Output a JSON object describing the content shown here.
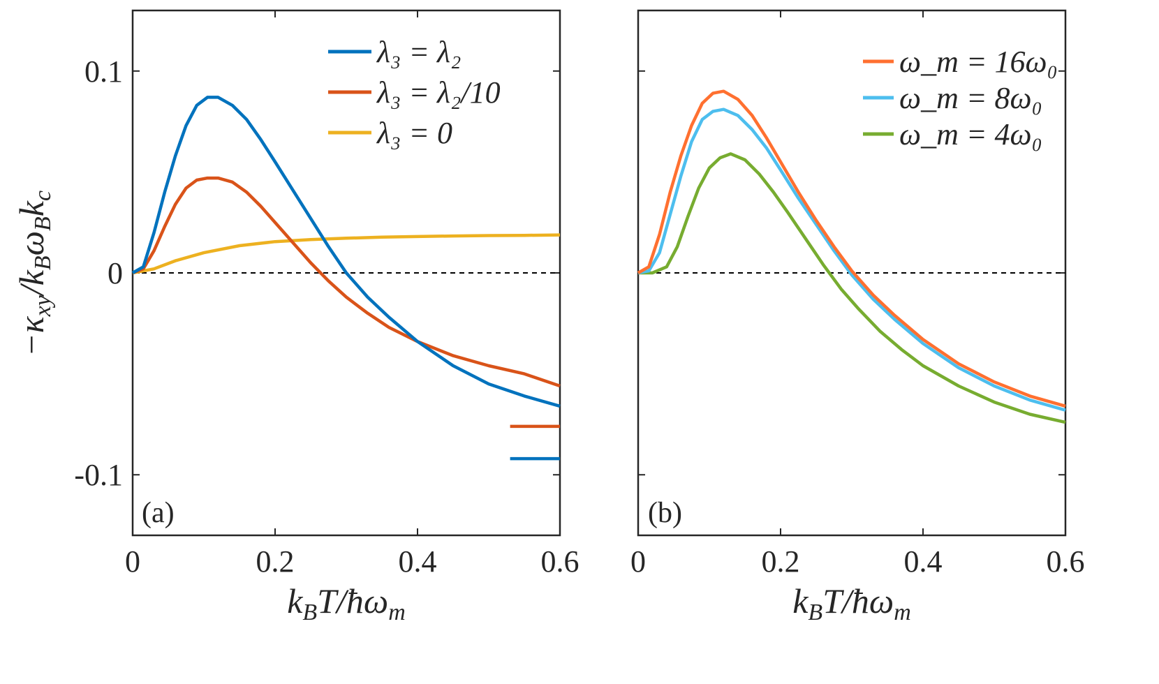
{
  "chart_data": [
    {
      "panel": "a",
      "type": "line",
      "tag": "(a)",
      "xlabel": "k_BT/ħω_m",
      "ylabel": "−κ_xy/k_Bω_Bk_c",
      "xlim": [
        0,
        0.6
      ],
      "ylim": [
        -0.13,
        0.13
      ],
      "xticks": [
        "0",
        "0.2",
        "0.4",
        "0.6"
      ],
      "yticks": [
        "-0.1",
        "0",
        "0.1"
      ],
      "zero_line": true,
      "legend_position": "top-right",
      "series": [
        {
          "name": "λ₃ = λ₂",
          "color": "#0072BD",
          "x": [
            0,
            0.015,
            0.03,
            0.045,
            0.06,
            0.075,
            0.09,
            0.105,
            0.12,
            0.14,
            0.16,
            0.18,
            0.2,
            0.225,
            0.25,
            0.275,
            0.3,
            0.33,
            0.36,
            0.4,
            0.45,
            0.5,
            0.55,
            0.6
          ],
          "y": [
            0,
            0.003,
            0.02,
            0.04,
            0.058,
            0.073,
            0.083,
            0.087,
            0.087,
            0.083,
            0.076,
            0.066,
            0.055,
            0.041,
            0.027,
            0.013,
            0.0,
            -0.012,
            -0.022,
            -0.034,
            -0.046,
            -0.055,
            -0.061,
            -0.066
          ]
        },
        {
          "name": "λ₃ = λ₂/10",
          "color": "#D95319",
          "x": [
            0,
            0.015,
            0.03,
            0.045,
            0.06,
            0.075,
            0.09,
            0.105,
            0.12,
            0.14,
            0.16,
            0.18,
            0.2,
            0.225,
            0.25,
            0.275,
            0.3,
            0.33,
            0.36,
            0.4,
            0.45,
            0.5,
            0.55,
            0.6
          ],
          "y": [
            0,
            0.002,
            0.011,
            0.023,
            0.034,
            0.042,
            0.046,
            0.047,
            0.047,
            0.045,
            0.04,
            0.033,
            0.025,
            0.015,
            0.005,
            -0.004,
            -0.012,
            -0.02,
            -0.027,
            -0.034,
            -0.041,
            -0.046,
            -0.05,
            -0.056
          ]
        },
        {
          "name": "λ₃ = 0",
          "color": "#EDB120",
          "x": [
            0,
            0.03,
            0.06,
            0.1,
            0.15,
            0.2,
            0.25,
            0.3,
            0.35,
            0.4,
            0.45,
            0.5,
            0.55,
            0.6
          ],
          "y": [
            0,
            0.002,
            0.006,
            0.01,
            0.0135,
            0.0155,
            0.0165,
            0.0172,
            0.0177,
            0.018,
            0.0183,
            0.0185,
            0.0186,
            0.0188
          ]
        }
      ],
      "asymptotes": [
        {
          "series": "λ₃ = λ₂/10",
          "color": "#D95319",
          "x": [
            0.53,
            0.6
          ],
          "y": -0.076
        },
        {
          "series": "λ₃ = λ₂",
          "color": "#0072BD",
          "x": [
            0.53,
            0.6
          ],
          "y": -0.092
        }
      ]
    },
    {
      "panel": "b",
      "type": "line",
      "tag": "(b)",
      "xlabel": "k_BT/ħω_m",
      "xlim": [
        0,
        0.6
      ],
      "ylim": [
        -0.13,
        0.13
      ],
      "xticks": [
        "0",
        "0.2",
        "0.4",
        "0.6"
      ],
      "yticks": [],
      "zero_line": true,
      "legend_position": "top-right",
      "series": [
        {
          "name": "ω_m = 16ω₀",
          "color": "#FF7030",
          "x": [
            0,
            0.015,
            0.03,
            0.045,
            0.06,
            0.075,
            0.09,
            0.105,
            0.12,
            0.14,
            0.16,
            0.18,
            0.2,
            0.225,
            0.25,
            0.275,
            0.3,
            0.33,
            0.36,
            0.4,
            0.45,
            0.5,
            0.55,
            0.6
          ],
          "y": [
            0,
            0.003,
            0.019,
            0.04,
            0.058,
            0.073,
            0.084,
            0.089,
            0.09,
            0.086,
            0.078,
            0.067,
            0.055,
            0.04,
            0.026,
            0.013,
            0.001,
            -0.011,
            -0.021,
            -0.033,
            -0.045,
            -0.054,
            -0.061,
            -0.066
          ]
        },
        {
          "name": "ω_m = 8ω₀",
          "color": "#4DBEEE",
          "x": [
            0,
            0.015,
            0.03,
            0.045,
            0.06,
            0.075,
            0.09,
            0.105,
            0.12,
            0.14,
            0.16,
            0.18,
            0.2,
            0.225,
            0.25,
            0.275,
            0.3,
            0.33,
            0.36,
            0.4,
            0.45,
            0.5,
            0.55,
            0.6
          ],
          "y": [
            0,
            0.001,
            0.01,
            0.029,
            0.048,
            0.065,
            0.076,
            0.08,
            0.081,
            0.078,
            0.071,
            0.062,
            0.051,
            0.037,
            0.024,
            0.011,
            -0.001,
            -0.013,
            -0.023,
            -0.035,
            -0.047,
            -0.056,
            -0.063,
            -0.068
          ]
        },
        {
          "name": "ω_m = 4ω₀",
          "color": "#77AC30",
          "x": [
            0,
            0.02,
            0.04,
            0.055,
            0.07,
            0.085,
            0.1,
            0.115,
            0.13,
            0.15,
            0.17,
            0.19,
            0.21,
            0.235,
            0.26,
            0.285,
            0.31,
            0.34,
            0.37,
            0.4,
            0.45,
            0.5,
            0.55,
            0.6
          ],
          "y": [
            0,
            0.0,
            0.003,
            0.013,
            0.028,
            0.042,
            0.052,
            0.057,
            0.059,
            0.056,
            0.049,
            0.04,
            0.03,
            0.017,
            0.004,
            -0.008,
            -0.018,
            -0.029,
            -0.038,
            -0.046,
            -0.056,
            -0.064,
            -0.07,
            -0.074
          ]
        }
      ]
    }
  ]
}
